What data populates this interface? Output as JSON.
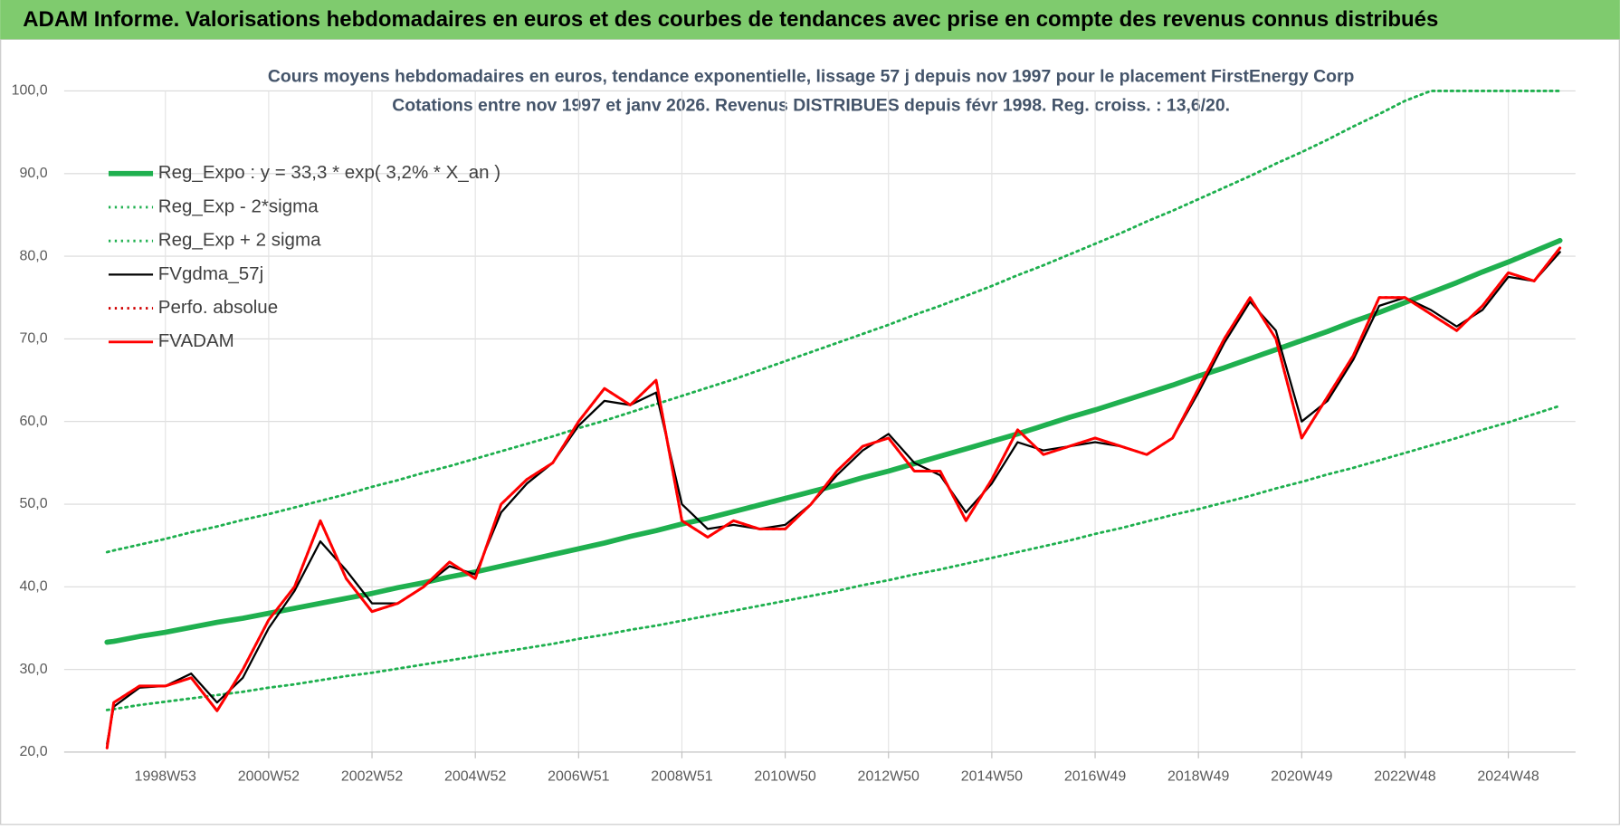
{
  "header": {
    "title": "ADAM Informe. Valorisations hebdomadaires en euros et des courbes de tendances avec prise en compte des revenus connus distribués"
  },
  "chart_data": {
    "type": "line",
    "title": "Cours moyens hebdomadaires en euros, tendance exponentielle, lissage 57 j depuis nov 1997  pour le  placement FirstEnergy Corp",
    "subtitle": "Cotations entre nov 1997 et janv 2026. Revenus DISTRIBUES depuis févr 1998. Reg.  croiss. : 13,6/20.",
    "x": [
      1997.87,
      1998.0,
      1998.5,
      1999.0,
      1999.5,
      2000.0,
      2000.5,
      2001.0,
      2001.5,
      2002.0,
      2002.5,
      2003.0,
      2003.5,
      2004.0,
      2004.5,
      2005.0,
      2005.5,
      2006.0,
      2006.5,
      2007.0,
      2007.5,
      2008.0,
      2008.5,
      2009.0,
      2009.5,
      2010.0,
      2010.5,
      2011.0,
      2011.5,
      2012.0,
      2012.5,
      2013.0,
      2013.5,
      2014.0,
      2014.5,
      2015.0,
      2015.5,
      2016.0,
      2016.5,
      2017.0,
      2017.5,
      2018.0,
      2018.5,
      2019.0,
      2019.5,
      2020.0,
      2020.5,
      2021.0,
      2021.5,
      2022.0,
      2022.5,
      2023.0,
      2023.5,
      2024.0,
      2024.5,
      2025.0,
      2025.5,
      2026.0
    ],
    "xlim": [
      1997.04,
      2026.3
    ],
    "xticks": [
      {
        "value": 1999.0,
        "label": "1998W53"
      },
      {
        "value": 2001.0,
        "label": "2000W52"
      },
      {
        "value": 2003.0,
        "label": "2002W52"
      },
      {
        "value": 2005.0,
        "label": "2004W52"
      },
      {
        "value": 2007.0,
        "label": "2006W51"
      },
      {
        "value": 2009.0,
        "label": "2008W51"
      },
      {
        "value": 2011.0,
        "label": "2010W50"
      },
      {
        "value": 2013.0,
        "label": "2012W50"
      },
      {
        "value": 2015.0,
        "label": "2014W50"
      },
      {
        "value": 2017.0,
        "label": "2016W49"
      },
      {
        "value": 2019.0,
        "label": "2018W49"
      },
      {
        "value": 2021.0,
        "label": "2020W49"
      },
      {
        "value": 2023.0,
        "label": "2022W48"
      },
      {
        "value": 2025.0,
        "label": "2024W48"
      }
    ],
    "ylim": [
      20,
      100
    ],
    "yticks": [
      {
        "value": 20,
        "label": "20,0"
      },
      {
        "value": 30,
        "label": "30,0"
      },
      {
        "value": 40,
        "label": "40,0"
      },
      {
        "value": 50,
        "label": "50,0"
      },
      {
        "value": 60,
        "label": "60,0"
      },
      {
        "value": 70,
        "label": "70,0"
      },
      {
        "value": 80,
        "label": "80,0"
      },
      {
        "value": 90,
        "label": "90,0"
      },
      {
        "value": 100,
        "label": "100,0"
      }
    ],
    "grid": true,
    "legend": "top-left",
    "series": [
      {
        "name": "Reg_Expo : y = 33,3 * exp( 3,2% *  X_an )",
        "color": "#1fb04f",
        "line_style": "solid",
        "values": [
          33.3,
          33.4,
          34.0,
          34.5,
          35.1,
          35.7,
          36.2,
          36.8,
          37.4,
          38.0,
          38.6,
          39.2,
          39.9,
          40.5,
          41.2,
          41.8,
          42.5,
          43.2,
          43.9,
          44.6,
          45.3,
          46.1,
          46.8,
          47.6,
          48.3,
          49.1,
          49.9,
          50.7,
          51.5,
          52.3,
          53.2,
          54.0,
          54.9,
          55.8,
          56.7,
          57.6,
          58.5,
          59.5,
          60.5,
          61.4,
          62.4,
          63.4,
          64.4,
          65.5,
          66.5,
          67.6,
          68.7,
          69.8,
          70.9,
          72.1,
          73.2,
          74.4,
          75.6,
          76.8,
          78.1,
          79.3,
          80.6,
          81.9
        ]
      },
      {
        "name": "Reg_Exp - 2*sigma",
        "color": "#1fb04f",
        "line_style": "dotted",
        "values": [
          25.1,
          25.2,
          25.7,
          26.1,
          26.5,
          26.9,
          27.3,
          27.8,
          28.2,
          28.7,
          29.2,
          29.6,
          30.1,
          30.6,
          31.1,
          31.6,
          32.1,
          32.6,
          33.1,
          33.7,
          34.2,
          34.8,
          35.3,
          35.9,
          36.5,
          37.1,
          37.7,
          38.3,
          38.9,
          39.5,
          40.2,
          40.8,
          41.5,
          42.1,
          42.8,
          43.5,
          44.2,
          44.9,
          45.6,
          46.4,
          47.1,
          47.9,
          48.7,
          49.4,
          50.2,
          51.0,
          51.9,
          52.7,
          53.6,
          54.4,
          55.3,
          56.2,
          57.1,
          58.0,
          59.0,
          59.9,
          60.9,
          61.9
        ]
      },
      {
        "name": "Reg_Exp + 2 sigma",
        "color": "#1fb04f",
        "line_style": "dotted",
        "values": [
          44.2,
          44.4,
          45.1,
          45.8,
          46.6,
          47.3,
          48.1,
          48.8,
          49.6,
          50.4,
          51.2,
          52.1,
          52.9,
          53.8,
          54.6,
          55.5,
          56.4,
          57.3,
          58.2,
          59.2,
          60.1,
          61.1,
          62.1,
          63.1,
          64.1,
          65.1,
          66.2,
          67.3,
          68.4,
          69.5,
          70.6,
          71.7,
          72.9,
          74.0,
          75.2,
          76.4,
          77.7,
          78.9,
          80.2,
          81.5,
          82.8,
          84.2,
          85.5,
          86.9,
          88.3,
          89.7,
          91.2,
          92.6,
          94.1,
          95.7,
          97.2,
          98.8,
          100,
          100,
          100,
          100,
          100,
          100
        ]
      },
      {
        "name": "FVgdma_57j",
        "color": "#000000",
        "line_style": "solid",
        "values": [
          21.0,
          25.5,
          27.8,
          28.0,
          29.5,
          26.0,
          29.0,
          35.0,
          39.5,
          45.5,
          42.0,
          38.0,
          38.0,
          40.0,
          42.5,
          41.5,
          49.0,
          52.5,
          55.0,
          59.5,
          62.5,
          62.0,
          63.5,
          50.0,
          47.0,
          47.5,
          47.0,
          47.5,
          50.0,
          53.5,
          56.5,
          58.5,
          55.0,
          53.5,
          49.0,
          52.5,
          57.5,
          56.5,
          57.0,
          57.5,
          57.0,
          56.0,
          58.0,
          63.5,
          69.5,
          74.5,
          71.0,
          60.0,
          62.5,
          67.5,
          74.0,
          75.0,
          73.5,
          71.5,
          73.5,
          77.5,
          77.0,
          80.5
        ]
      },
      {
        "name": "Perfo. absolue",
        "color": "#d00000",
        "line_style": "dotted",
        "values": [
          20.5,
          26,
          28,
          28,
          29,
          25,
          30,
          36,
          40,
          48,
          41,
          37,
          38,
          40,
          43,
          41,
          50,
          53,
          55,
          60,
          64,
          62,
          65,
          48,
          46,
          48,
          47,
          47,
          50,
          54,
          57,
          58,
          54,
          54,
          48,
          53,
          59,
          56,
          57,
          58,
          57,
          56,
          58,
          64,
          70,
          75,
          70,
          58,
          63,
          68,
          75,
          75,
          73,
          71,
          74,
          78,
          77,
          81
        ]
      },
      {
        "name": "FVADAM",
        "color": "#ff0000",
        "line_style": "solid",
        "values": [
          20.5,
          26,
          28,
          28,
          29,
          25,
          30,
          36,
          40,
          48,
          41,
          37,
          38,
          40,
          43,
          41,
          50,
          53,
          55,
          60,
          64,
          62,
          65,
          48,
          46,
          48,
          47,
          47,
          50,
          54,
          57,
          58,
          54,
          54,
          48,
          53,
          59,
          56,
          57,
          58,
          57,
          56,
          58,
          64,
          70,
          75,
          70,
          58,
          63,
          68,
          75,
          75,
          73,
          71,
          74,
          78,
          77,
          81
        ]
      }
    ]
  }
}
